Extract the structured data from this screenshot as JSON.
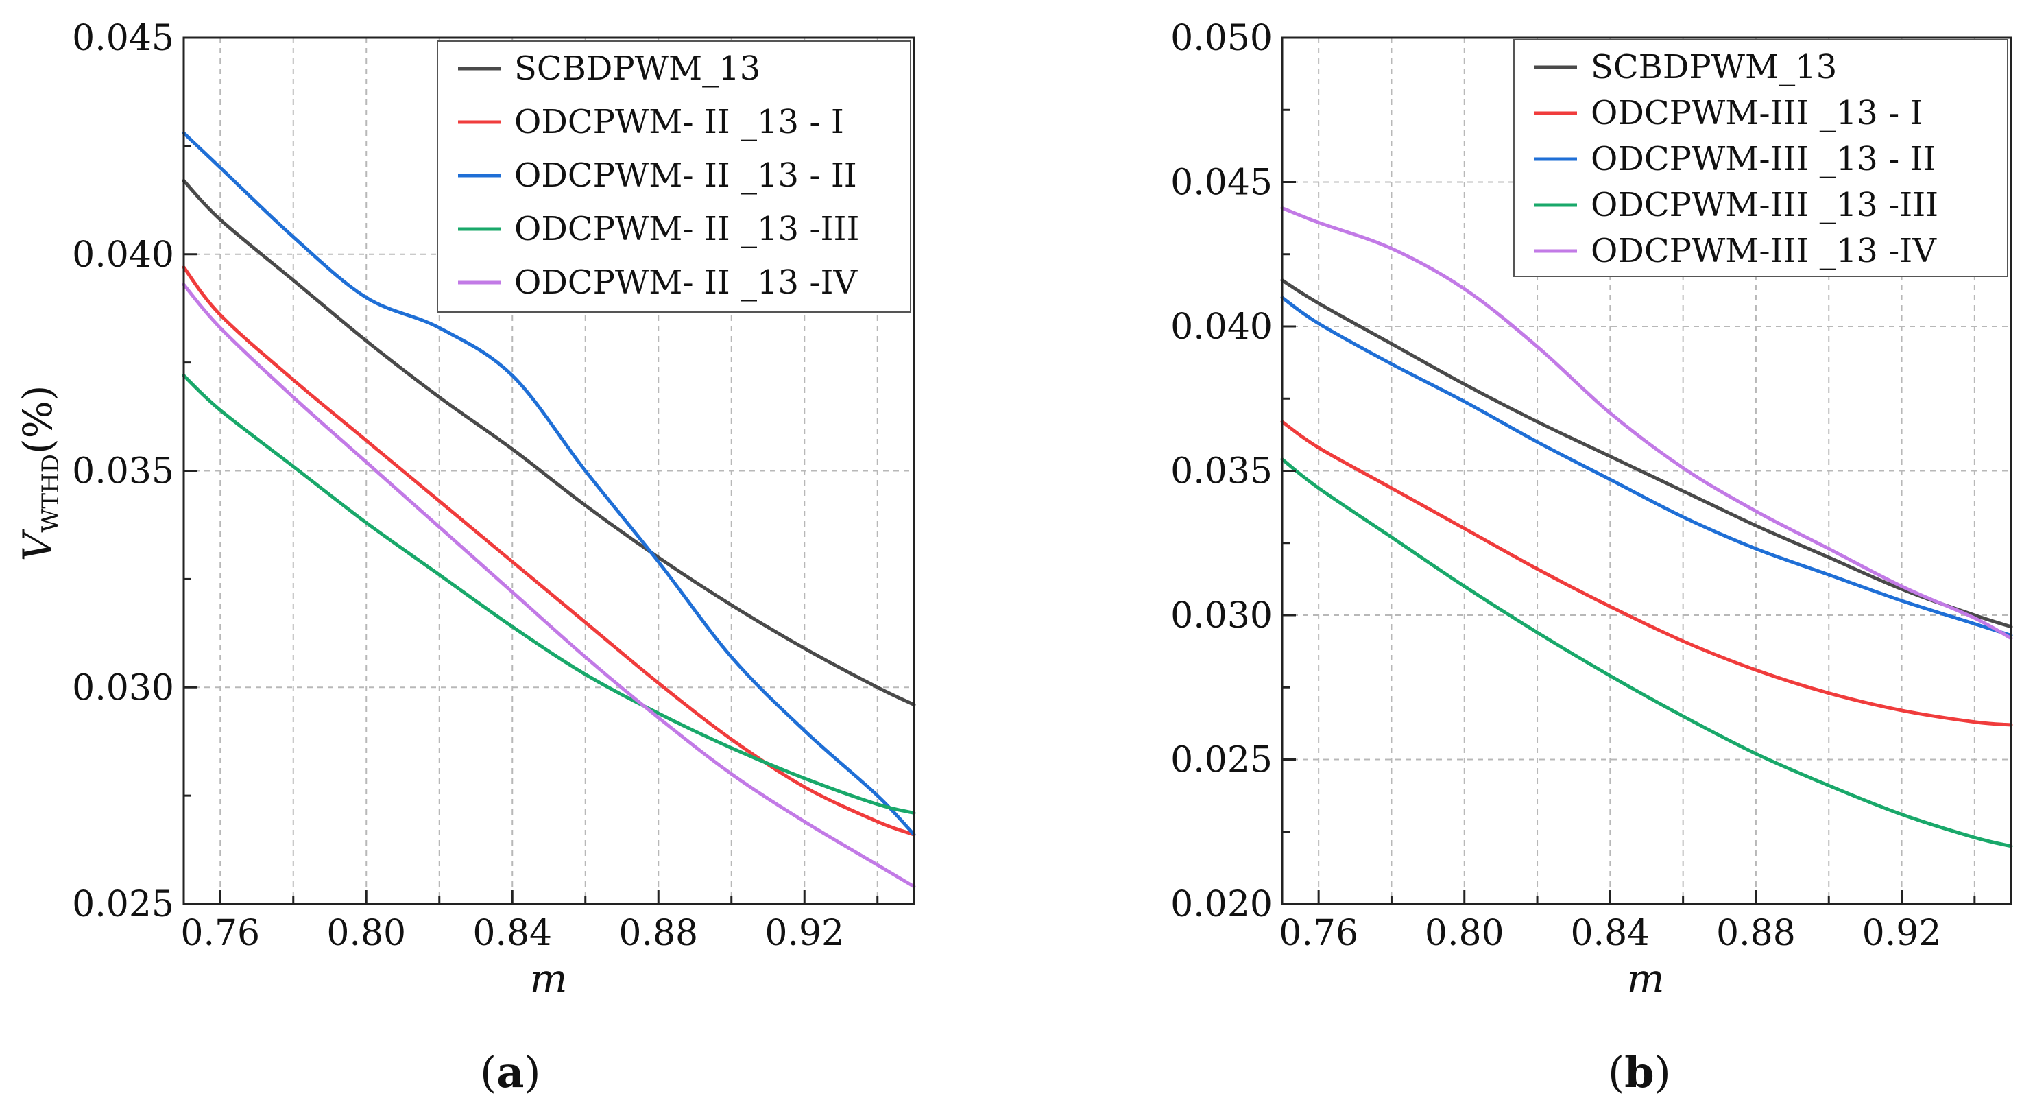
{
  "chart_data": [
    {
      "type": "line",
      "panel_label_open": "(",
      "panel_label_letter": "a",
      "panel_label_close": ")",
      "xlabel": "m",
      "ylabel": "V",
      "ylabel_sub": "WTHD",
      "ylabel_suffix": "(%)",
      "xlim": [
        0.75,
        0.95
      ],
      "ylim": [
        0.025,
        0.045
      ],
      "xticks": [
        0.76,
        0.8,
        0.84,
        0.88,
        0.92
      ],
      "xtick_labels": [
        "0.76",
        "0.80",
        "0.84",
        "0.88",
        "0.92"
      ],
      "yticks": [
        0.025,
        0.03,
        0.035,
        0.04,
        0.045
      ],
      "ytick_labels": [
        "0.025",
        "0.030",
        "0.035",
        "0.040",
        "0.045"
      ],
      "legend_position": "top-right",
      "x": [
        0.75,
        0.76,
        0.78,
        0.8,
        0.82,
        0.84,
        0.86,
        0.88,
        0.9,
        0.92,
        0.94,
        0.95
      ],
      "series": [
        {
          "name": "SCBDPWM_13",
          "color": "#4a4a4a",
          "values": [
            0.0417,
            0.0408,
            0.0394,
            0.038,
            0.0367,
            0.0355,
            0.0342,
            0.033,
            0.0319,
            0.0309,
            0.03,
            0.0296
          ]
        },
        {
          "name": "ODCPWM- II _13 - I",
          "color": "#f03c3c",
          "values": [
            0.0397,
            0.0386,
            0.0371,
            0.0357,
            0.0343,
            0.0329,
            0.0315,
            0.0301,
            0.0288,
            0.0277,
            0.0269,
            0.0266
          ]
        },
        {
          "name": "ODCPWM- II _13 - II",
          "color": "#1f6fd6",
          "values": [
            0.0428,
            0.042,
            0.0404,
            0.039,
            0.0383,
            0.0372,
            0.035,
            0.0329,
            0.0307,
            0.029,
            0.0275,
            0.0266
          ]
        },
        {
          "name": "ODCPWM- II _13 -III",
          "color": "#19a86a",
          "values": [
            0.0372,
            0.0364,
            0.0351,
            0.0338,
            0.0326,
            0.0314,
            0.0303,
            0.0294,
            0.0286,
            0.0279,
            0.0273,
            0.0271
          ]
        },
        {
          "name": "ODCPWM- II _13 -IV",
          "color": "#c27ae6",
          "values": [
            0.0393,
            0.0383,
            0.0367,
            0.0352,
            0.0337,
            0.0322,
            0.0307,
            0.0293,
            0.028,
            0.0269,
            0.0259,
            0.0254
          ]
        }
      ]
    },
    {
      "type": "line",
      "panel_label_open": "(",
      "panel_label_letter": "b",
      "panel_label_close": ")",
      "xlabel": "m",
      "xlim": [
        0.75,
        0.95
      ],
      "ylim": [
        0.02,
        0.05
      ],
      "xticks": [
        0.76,
        0.8,
        0.84,
        0.88,
        0.92
      ],
      "xtick_labels": [
        "0.76",
        "0.80",
        "0.84",
        "0.88",
        "0.92"
      ],
      "yticks": [
        0.02,
        0.025,
        0.03,
        0.035,
        0.04,
        0.045,
        0.05
      ],
      "ytick_labels": [
        "0.020",
        "0.025",
        "0.030",
        "0.035",
        "0.040",
        "0.045",
        "0.050"
      ],
      "legend_position": "top-right",
      "x": [
        0.75,
        0.76,
        0.78,
        0.8,
        0.82,
        0.84,
        0.86,
        0.88,
        0.9,
        0.92,
        0.94,
        0.95
      ],
      "series": [
        {
          "name": "SCBDPWM_13",
          "color": "#4a4a4a",
          "values": [
            0.0416,
            0.0408,
            0.0394,
            0.038,
            0.0367,
            0.0355,
            0.0343,
            0.0331,
            0.032,
            0.0309,
            0.03,
            0.0296
          ]
        },
        {
          "name": "ODCPWM-III _13 - I",
          "color": "#f03c3c",
          "values": [
            0.0367,
            0.0358,
            0.0344,
            0.033,
            0.0316,
            0.0303,
            0.0291,
            0.0281,
            0.0273,
            0.0267,
            0.0263,
            0.0262
          ]
        },
        {
          "name": "ODCPWM-III _13 - II",
          "color": "#1f6fd6",
          "values": [
            0.041,
            0.0401,
            0.0387,
            0.0374,
            0.036,
            0.0347,
            0.0334,
            0.0323,
            0.0314,
            0.0305,
            0.0297,
            0.0293
          ]
        },
        {
          "name": "ODCPWM-III _13 -III",
          "color": "#19a86a",
          "values": [
            0.0354,
            0.0344,
            0.0327,
            0.031,
            0.0294,
            0.0279,
            0.0265,
            0.0252,
            0.0241,
            0.0231,
            0.0223,
            0.022
          ]
        },
        {
          "name": "ODCPWM-III _13 -IV",
          "color": "#c27ae6",
          "values": [
            0.0441,
            0.0436,
            0.0427,
            0.0413,
            0.0393,
            0.037,
            0.0351,
            0.0336,
            0.0323,
            0.031,
            0.0299,
            0.0292
          ]
        }
      ]
    }
  ]
}
